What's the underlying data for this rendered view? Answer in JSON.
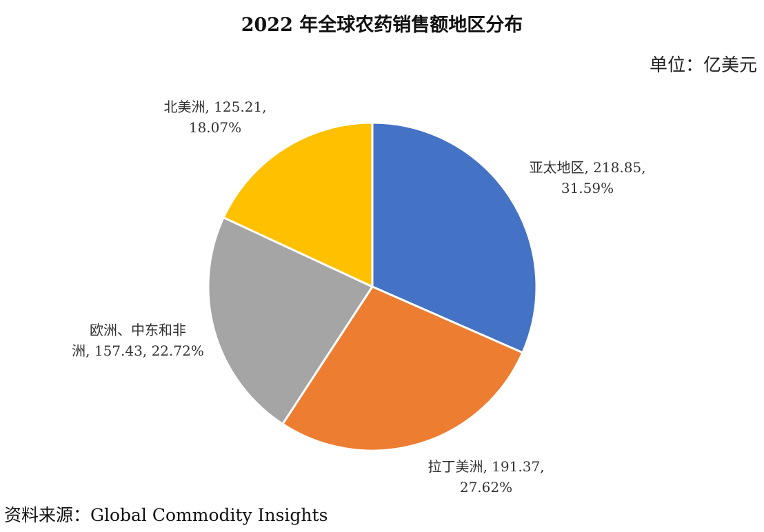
{
  "header": {
    "title": "2022 年全球农药销售额地区分布",
    "unit": "单位：亿美元"
  },
  "footer": {
    "source": "资料来源：Global Commodity Insights"
  },
  "chart_data": {
    "type": "pie",
    "title": "2022 年全球农药销售额地区分布",
    "unit": "亿美元",
    "start_angle_deg": 0,
    "direction": "clockwise",
    "slices": [
      {
        "name": "亚太地区",
        "value": 218.85,
        "percent": "31.59%",
        "color": "#4472C4",
        "label_lines": [
          "亚太地区, 218.85,",
          "31.59%"
        ]
      },
      {
        "name": "拉丁美洲",
        "value": 191.37,
        "percent": "27.62%",
        "color": "#ED7D31",
        "label_lines": [
          "拉丁美洲, 191.37,",
          "27.62%"
        ]
      },
      {
        "name": "欧洲、中东和非洲",
        "value": 157.43,
        "percent": "22.72%",
        "color": "#A5A5A5",
        "label_lines": [
          "欧洲、中东和非",
          "洲, 157.43, 22.72%"
        ]
      },
      {
        "name": "北美洲",
        "value": 125.21,
        "percent": "18.07%",
        "color": "#FFC000",
        "label_lines": [
          "北美洲, 125.21,",
          "18.07%"
        ]
      }
    ]
  }
}
